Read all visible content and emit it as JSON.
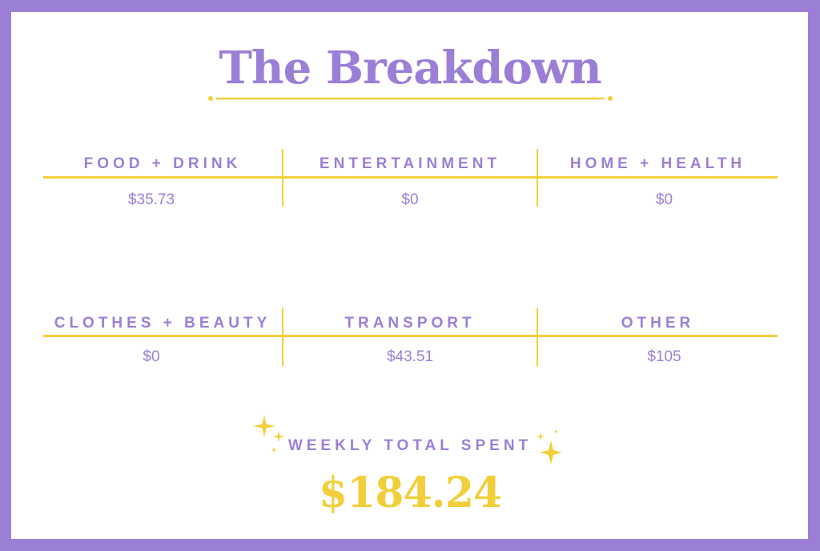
{
  "title": "The Breakdown",
  "categories_row1": [
    {
      "label": "FOOD + DRINK",
      "value": "$35.73"
    },
    {
      "label": "ENTERTAINMENT",
      "value": "$0"
    },
    {
      "label": "HOME + HEALTH",
      "value": "$0"
    }
  ],
  "categories_row2": [
    {
      "label": "CLOTHES + BEAUTY",
      "value": "$0"
    },
    {
      "label": "TRANSPORT",
      "value": "$43.51"
    },
    {
      "label": "OTHER",
      "value": "$105"
    }
  ],
  "total": {
    "label": "WEEKLY TOTAL SPENT",
    "value": "$184.24"
  },
  "colors": {
    "accent_purple": "#9b7fd6",
    "accent_yellow": "#f2cf3a",
    "background": "#ffffff"
  },
  "icons": [
    "sparkle-icon"
  ]
}
